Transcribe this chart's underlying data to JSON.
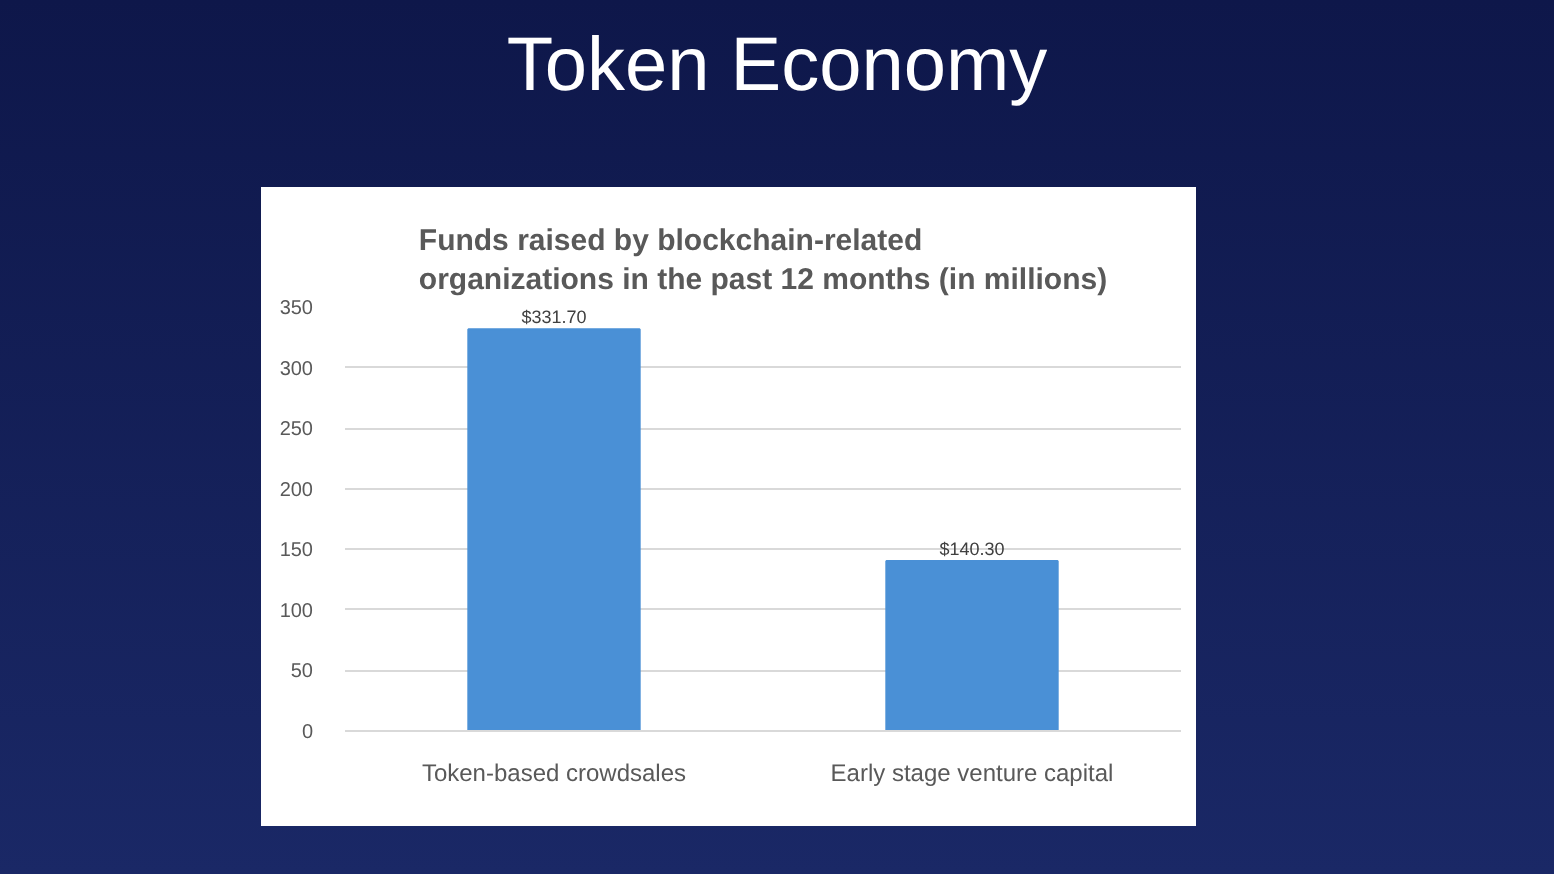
{
  "chart_data": {
    "type": "bar",
    "title": "Token Economy",
    "subtitle": "Funds raised by blockchain-related organizations in the past 12 months (in millions)",
    "categories": [
      "Token-based crowdsales",
      "Early stage venture capital"
    ],
    "values": [
      331.7,
      140.3
    ],
    "value_labels": [
      "$331.70",
      "$140.30"
    ],
    "color": "#4a90d6",
    "ylim": [
      0,
      350
    ],
    "yticks": [
      0,
      50,
      100,
      150,
      200,
      250,
      300,
      350
    ],
    "grid": "y"
  }
}
